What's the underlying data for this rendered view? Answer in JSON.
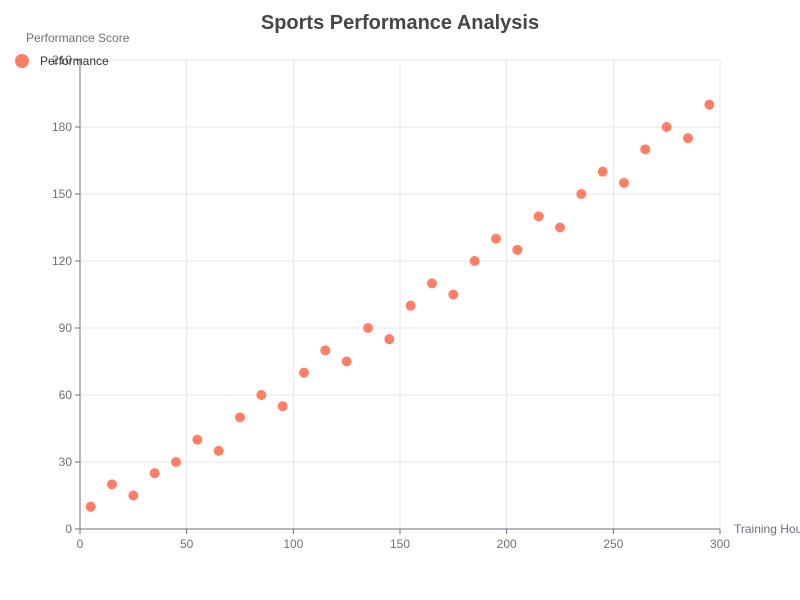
{
  "chart_data": {
    "type": "scatter",
    "title": "Sports Performance Analysis",
    "xlabel": "Training Hours",
    "ylabel": "Performance Score",
    "xlim": [
      0,
      300
    ],
    "ylim": [
      0,
      210
    ],
    "x_ticks": [
      0,
      50,
      100,
      150,
      200,
      250,
      300
    ],
    "y_ticks": [
      0,
      30,
      60,
      90,
      120,
      150,
      180,
      210
    ],
    "grid": true,
    "legend_position": "top-left",
    "series": [
      {
        "name": "Performance",
        "color": "#ff7f66",
        "points": [
          [
            5,
            10
          ],
          [
            15,
            20
          ],
          [
            25,
            15
          ],
          [
            35,
            25
          ],
          [
            45,
            30
          ],
          [
            55,
            40
          ],
          [
            65,
            35
          ],
          [
            75,
            50
          ],
          [
            85,
            60
          ],
          [
            95,
            55
          ],
          [
            105,
            70
          ],
          [
            115,
            80
          ],
          [
            125,
            75
          ],
          [
            135,
            90
          ],
          [
            145,
            85
          ],
          [
            155,
            100
          ],
          [
            165,
            110
          ],
          [
            175,
            105
          ],
          [
            185,
            120
          ],
          [
            195,
            130
          ],
          [
            205,
            125
          ],
          [
            215,
            140
          ],
          [
            225,
            135
          ],
          [
            235,
            150
          ],
          [
            245,
            160
          ],
          [
            255,
            155
          ],
          [
            265,
            170
          ],
          [
            275,
            180
          ],
          [
            285,
            175
          ],
          [
            295,
            190
          ]
        ]
      }
    ]
  }
}
